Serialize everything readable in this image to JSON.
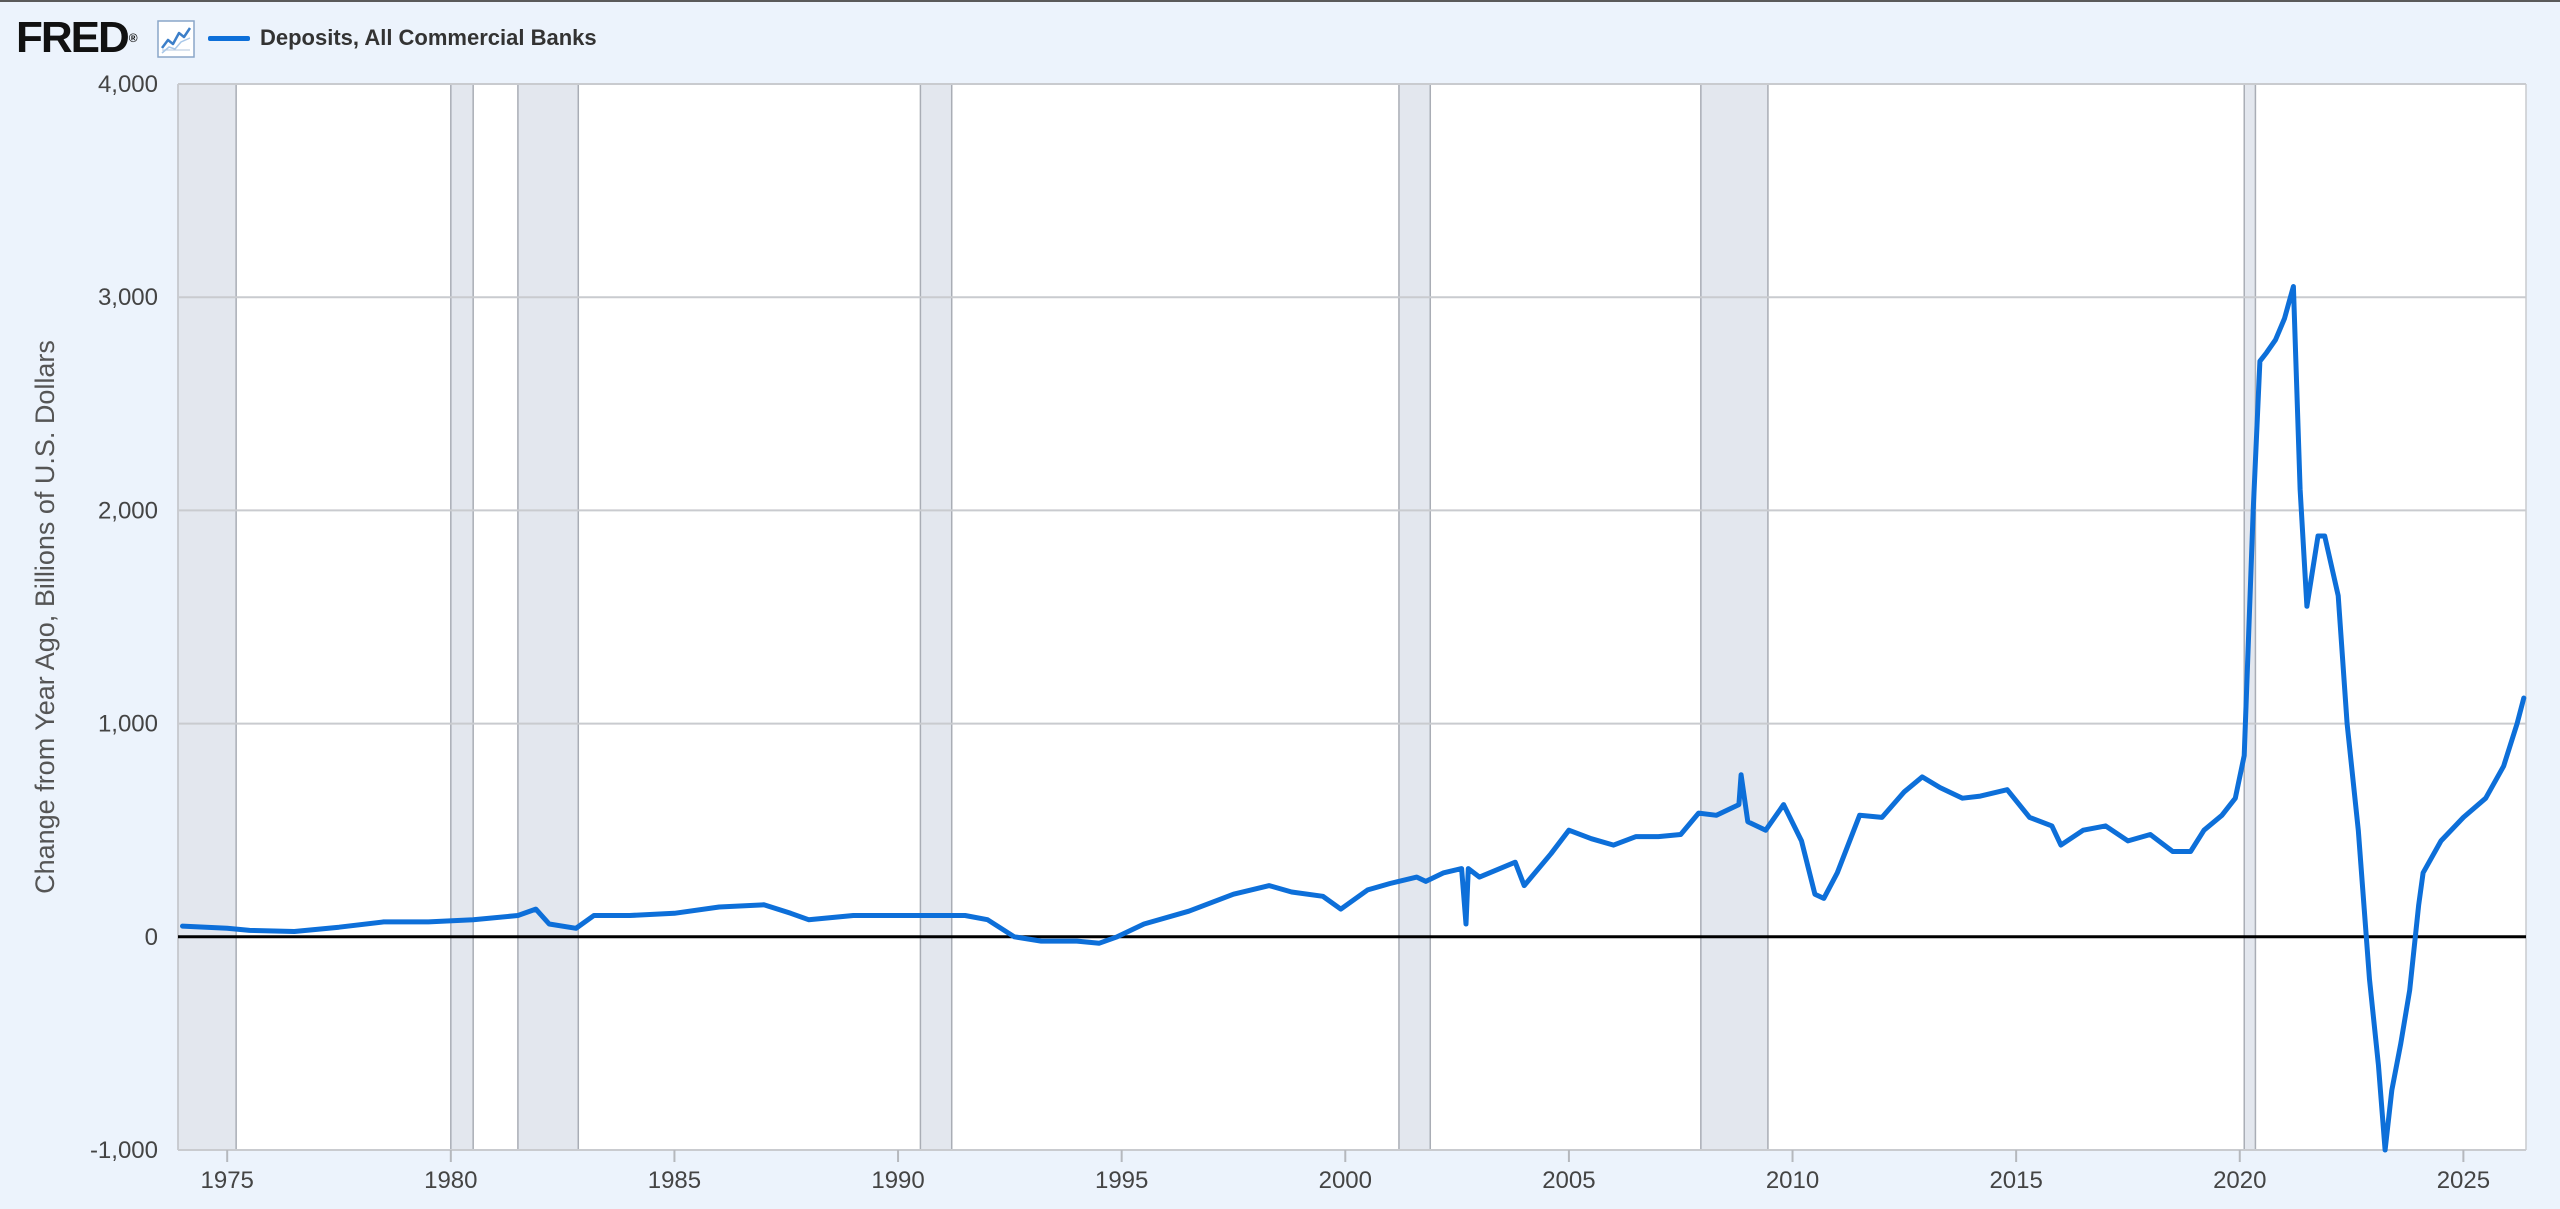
{
  "header": {
    "logo_text": "FRED",
    "logo_mark": "®",
    "graph_icon": "line-chart-icon",
    "legend_label": "Deposits, All Commercial Banks",
    "legend_color": "#0d6fd9"
  },
  "chart_data": {
    "type": "line",
    "title": "",
    "xlabel": "",
    "ylabel": "Change from Year Ago, Billions of U.S. Dollars",
    "xlim": [
      1973.9,
      2026.4
    ],
    "ylim": [
      -1000,
      4000
    ],
    "yticks": [
      -1000,
      0,
      1000,
      2000,
      3000,
      4000
    ],
    "ytick_labels": [
      "-1,000",
      "0",
      "1,000",
      "2,000",
      "3,000",
      "4,000"
    ],
    "xticks": [
      1975,
      1980,
      1985,
      1990,
      1995,
      2000,
      2005,
      2010,
      2015,
      2020,
      2025
    ],
    "xtick_labels": [
      "1975",
      "1980",
      "1985",
      "1990",
      "1995",
      "2000",
      "2005",
      "2010",
      "2015",
      "2020",
      "2025"
    ],
    "grid": true,
    "legend": "top-left",
    "line_color": "#0d6fd9",
    "recession_color": "#e3e7ee",
    "recessions": [
      [
        1973.9,
        1975.2
      ],
      [
        1980.0,
        1980.5
      ],
      [
        1981.5,
        1982.85
      ],
      [
        1990.5,
        1991.2
      ],
      [
        2001.2,
        2001.9
      ],
      [
        2007.95,
        2009.45
      ],
      [
        2020.1,
        2020.35
      ]
    ],
    "series": [
      {
        "name": "Deposits, All Commercial Banks",
        "x": [
          1974.0,
          1975.0,
          1975.5,
          1976.5,
          1977.5,
          1978.5,
          1979.5,
          1980.5,
          1981.5,
          1981.9,
          1982.2,
          1982.8,
          1983.2,
          1984.0,
          1985.0,
          1986.0,
          1987.0,
          1987.6,
          1988.0,
          1989.0,
          1990.0,
          1990.8,
          1991.5,
          1992.0,
          1992.6,
          1993.2,
          1994.0,
          1994.5,
          1994.9,
          1995.5,
          1996.5,
          1997.5,
          1998.3,
          1998.8,
          1999.5,
          1999.9,
          2000.5,
          2001.0,
          2001.6,
          2001.8,
          2002.2,
          2002.6,
          2002.7,
          2002.75,
          2003.0,
          2003.8,
          2004.0,
          2004.6,
          2005.0,
          2005.5,
          2006.0,
          2006.5,
          2007.0,
          2007.5,
          2007.9,
          2008.3,
          2008.6,
          2008.8,
          2008.85,
          2009.0,
          2009.4,
          2009.8,
          2010.2,
          2010.5,
          2010.7,
          2011.0,
          2011.5,
          2012.0,
          2012.5,
          2012.9,
          2013.3,
          2013.8,
          2014.2,
          2014.8,
          2015.3,
          2015.8,
          2016.0,
          2016.5,
          2017.0,
          2017.5,
          2018.0,
          2018.5,
          2018.9,
          2019.2,
          2019.6,
          2019.9,
          2020.1,
          2020.3,
          2020.45,
          2020.6,
          2020.8,
          2021.0,
          2021.2,
          2021.35,
          2021.5,
          2021.75,
          2021.9,
          2022.2,
          2022.4,
          2022.65,
          2022.9,
          2023.1,
          2023.25,
          2023.4,
          2023.6,
          2023.8,
          2024.0,
          2024.1,
          2024.5,
          2025.0,
          2025.5,
          2025.9,
          2026.2,
          2026.35
        ],
        "y": [
          50,
          40,
          30,
          25,
          45,
          70,
          70,
          80,
          100,
          130,
          60,
          40,
          100,
          100,
          110,
          140,
          150,
          110,
          80,
          100,
          100,
          100,
          100,
          80,
          0,
          -20,
          -20,
          -30,
          0,
          60,
          120,
          200,
          240,
          210,
          190,
          130,
          220,
          250,
          280,
          260,
          300,
          320,
          60,
          320,
          280,
          350,
          240,
          390,
          500,
          460,
          430,
          470,
          470,
          480,
          580,
          570,
          600,
          620,
          760,
          540,
          500,
          620,
          450,
          200,
          180,
          300,
          570,
          560,
          680,
          750,
          700,
          650,
          660,
          690,
          560,
          520,
          430,
          500,
          520,
          450,
          480,
          400,
          400,
          500,
          570,
          650,
          850,
          2000,
          2700,
          2740,
          2800,
          2900,
          3050,
          2100,
          1550,
          1880,
          1880,
          1600,
          1000,
          500,
          -200,
          -600,
          -1000,
          -720,
          -500,
          -250,
          150,
          300,
          450,
          560,
          650,
          800,
          1000,
          1120
        ]
      }
    ]
  }
}
